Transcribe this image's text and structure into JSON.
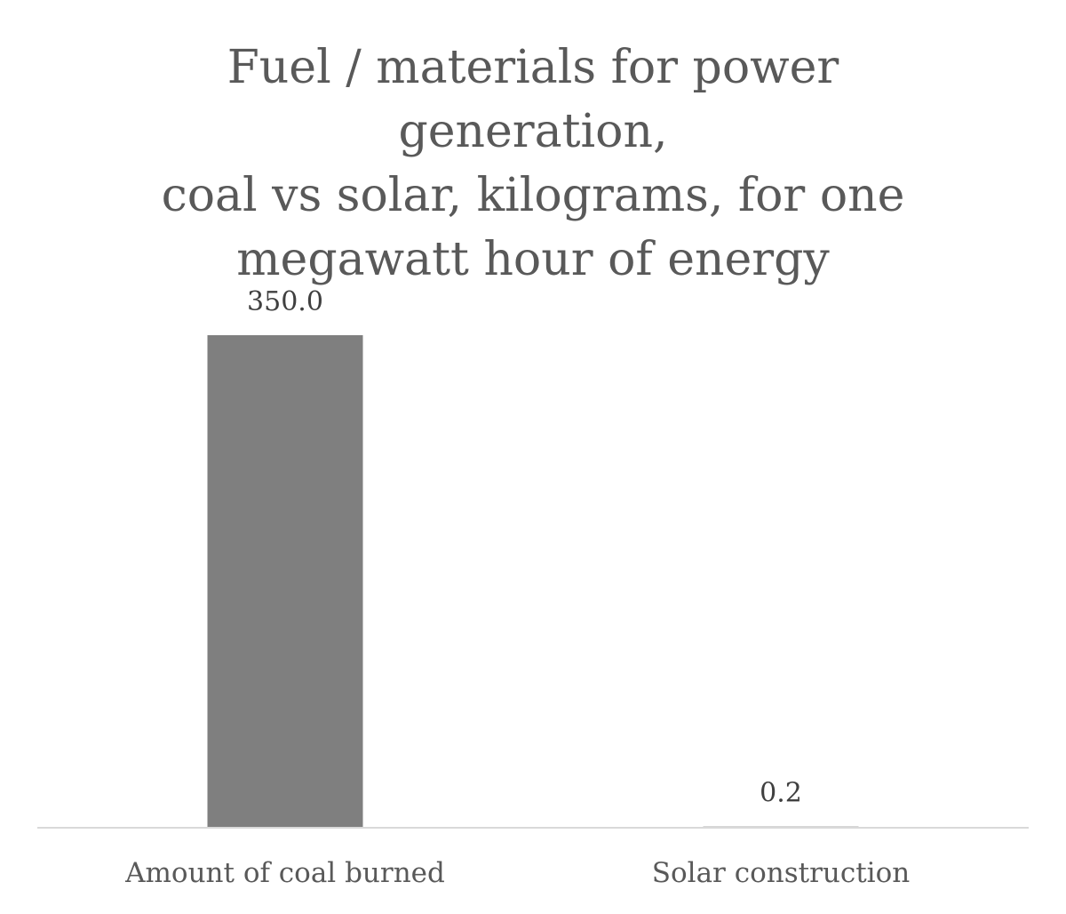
{
  "chart_data": {
    "type": "bar",
    "title_lines": [
      "Fuel / materials for power generation,",
      "coal vs solar, kilograms, for one",
      "megawatt hour of energy"
    ],
    "categories": [
      "Amount of coal burned",
      "Solar construction"
    ],
    "values": [
      350.0,
      0.2
    ],
    "data_labels": [
      "350.0",
      "0.2"
    ],
    "xlabel": "",
    "ylabel": "",
    "ylim": [
      0,
      350
    ],
    "grid": false,
    "legend": "none",
    "colors": {
      "bar": "#7f7f7f",
      "axis": "#d9d9d9",
      "title": "#595959",
      "label": "#404040",
      "tick": "#595959"
    }
  }
}
